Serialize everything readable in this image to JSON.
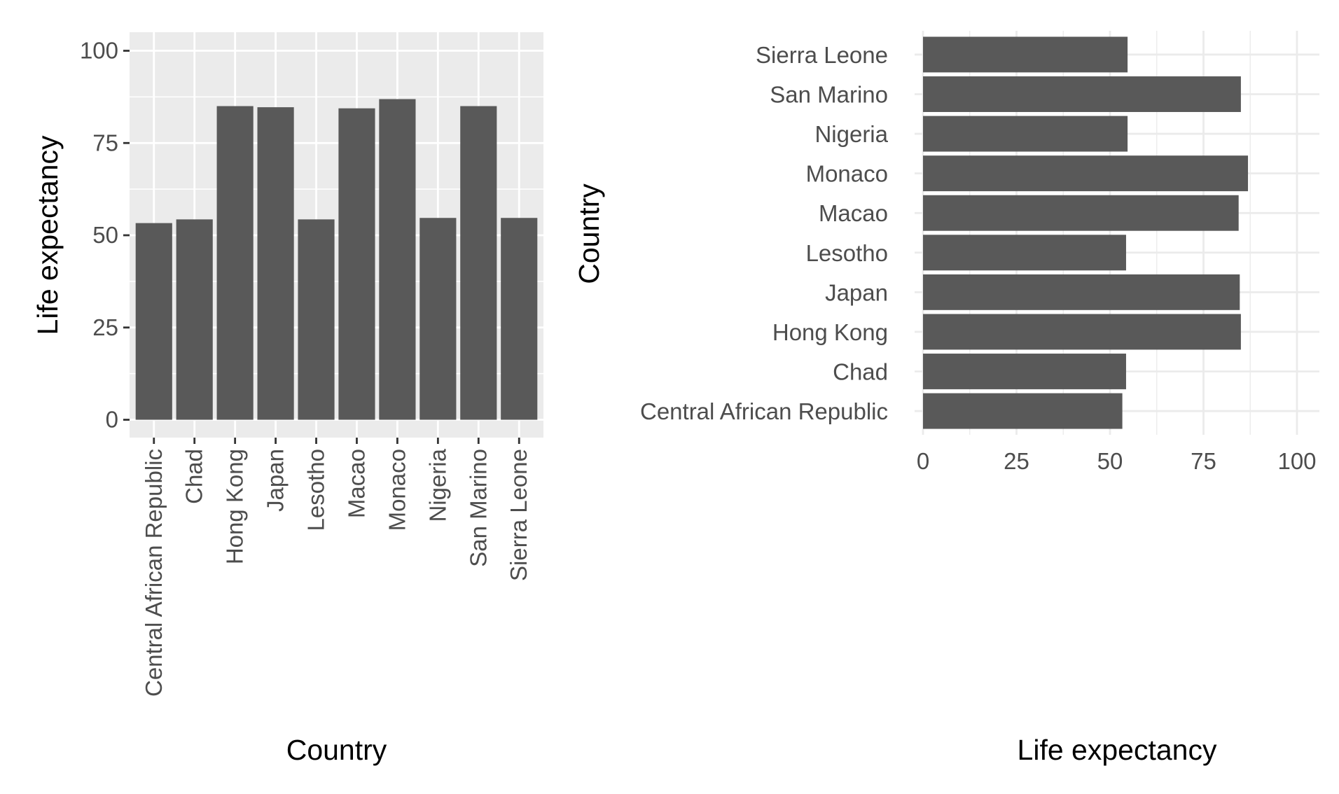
{
  "chart_data": [
    {
      "type": "bar",
      "orientation": "vertical",
      "theme": "gray",
      "categories": [
        "Central African Republic",
        "Chad",
        "Hong Kong",
        "Japan",
        "Lesotho",
        "Macao",
        "Monaco",
        "Nigeria",
        "San Marino",
        "Sierra Leone"
      ],
      "values": [
        53.3,
        54.3,
        85.0,
        84.7,
        54.3,
        84.4,
        86.9,
        54.7,
        85.0,
        54.7
      ],
      "xlabel": "Country",
      "ylabel": "Life expectancy",
      "ylim": [
        0,
        100
      ],
      "yticks": [
        0,
        25,
        50,
        75,
        100
      ],
      "grid": true,
      "bar_color": "#595959",
      "panel_background": "#ebebeb"
    },
    {
      "type": "bar",
      "orientation": "horizontal",
      "theme": "minimal",
      "categories": [
        "Central African Republic",
        "Chad",
        "Hong Kong",
        "Japan",
        "Lesotho",
        "Macao",
        "Monaco",
        "Nigeria",
        "San Marino",
        "Sierra Leone"
      ],
      "values": [
        53.3,
        54.3,
        85.0,
        84.7,
        54.3,
        84.4,
        86.9,
        54.7,
        85.0,
        54.7
      ],
      "xlabel": "Life expectancy",
      "ylabel": "Country",
      "xlim": [
        0,
        100
      ],
      "xticks": [
        0,
        25,
        50,
        75,
        100
      ],
      "grid": true,
      "bar_color": "#595959",
      "panel_background": "#ffffff"
    }
  ]
}
